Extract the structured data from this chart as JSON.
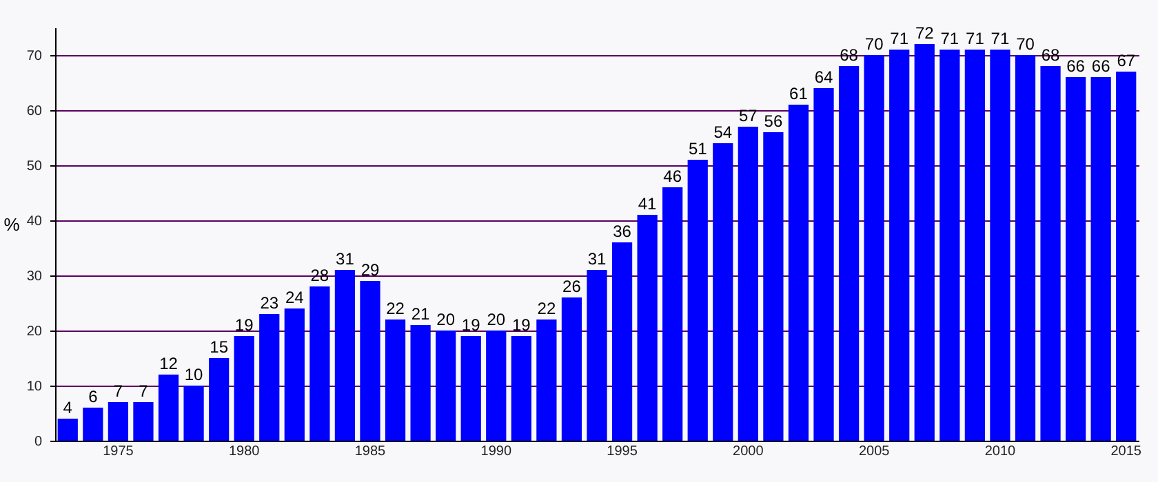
{
  "chart_data": {
    "type": "bar",
    "ylabel": "%",
    "categories": [
      null,
      null,
      "1975",
      null,
      null,
      null,
      null,
      "1980",
      null,
      null,
      null,
      null,
      "1985",
      null,
      null,
      null,
      null,
      "1990",
      null,
      null,
      null,
      null,
      "1995",
      null,
      null,
      null,
      null,
      "2000",
      null,
      null,
      null,
      null,
      "2005",
      null,
      null,
      null,
      null,
      "2010",
      null,
      null,
      null,
      null,
      "2015"
    ],
    "values": [
      4,
      6,
      7,
      7,
      12,
      10,
      15,
      19,
      23,
      24,
      28,
      31,
      29,
      22,
      21,
      20,
      19,
      20,
      19,
      22,
      26,
      31,
      36,
      41,
      46,
      51,
      54,
      57,
      56,
      61,
      64,
      68,
      70,
      71,
      72,
      71,
      71,
      71,
      70,
      68,
      66,
      66,
      67
    ],
    "color": "#0000ff",
    "ylim": [
      0,
      75
    ],
    "yticks": [
      0,
      10,
      20,
      30,
      40,
      50,
      60,
      70
    ],
    "grid": "y",
    "data_labels": true
  }
}
